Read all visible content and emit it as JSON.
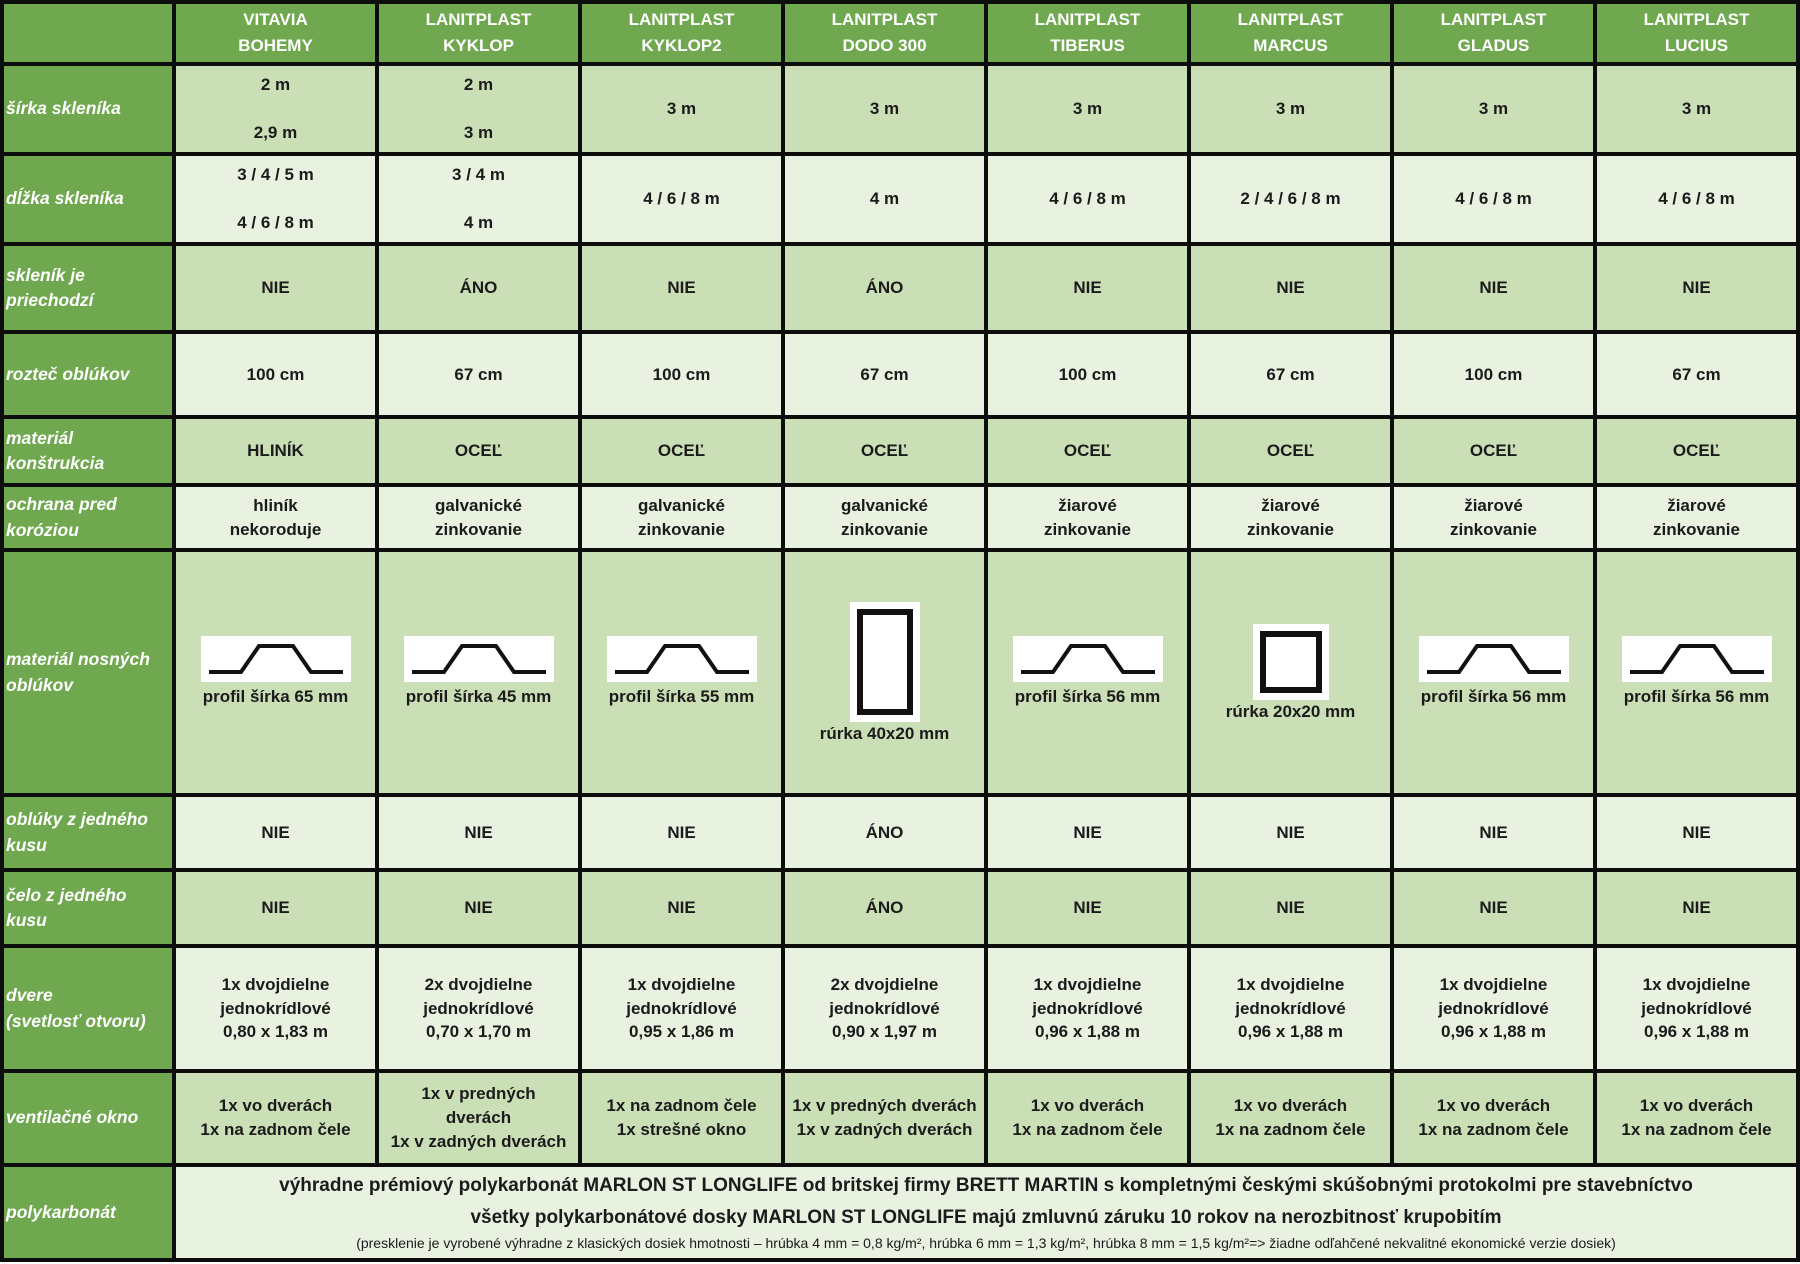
{
  "colors": {
    "header_green": "#6fa84e",
    "cell_dark": "#cbdfb6",
    "cell_light": "#e9f1e1",
    "border_black": "#0d0d0d",
    "text_dark": "#1b1b1b",
    "text_white": "#ffffff"
  },
  "products": [
    "VITAVIA\nBOHEMY",
    "LANITPLAST\nKYKLOP",
    "LANITPLAST\nKYKLOP2",
    "LANITPLAST\nDODO 300",
    "LANITPLAST\nTIBERUS",
    "LANITPLAST\nMARCUS",
    "LANITPLAST\nGLADUS",
    "LANITPLAST\nLUCIUS"
  ],
  "rows": [
    {
      "label": "šírka skleníka",
      "type": "text",
      "values": [
        "2 m\n\n2,9 m",
        "2 m\n\n3 m",
        "3 m",
        "3 m",
        "3 m",
        "3 m",
        "3 m",
        "3 m"
      ]
    },
    {
      "label": "dĺžka skleníka",
      "type": "text",
      "values": [
        "3 / 4 / 5 m\n\n4 / 6 / 8 m",
        "3 / 4 m\n\n4 m",
        "4 / 6 / 8 m",
        "4 m",
        "4 / 6 / 8 m",
        "2 / 4 / 6 / 8 m",
        "4 / 6 / 8 m",
        "4 / 6 / 8 m"
      ]
    },
    {
      "label": "skleník je priechodzí",
      "type": "text",
      "values": [
        "NIE",
        "ÁNO",
        "NIE",
        "ÁNO",
        "NIE",
        "NIE",
        "NIE",
        "NIE"
      ]
    },
    {
      "label": "rozteč oblúkov",
      "type": "text",
      "values": [
        "100 cm",
        "67 cm",
        "100 cm",
        "67 cm",
        "100 cm",
        "67 cm",
        "100 cm",
        "67 cm"
      ]
    },
    {
      "label": "materiál konštrukcia",
      "type": "text",
      "values": [
        "HLINÍK",
        "OCEĽ",
        "OCEĽ",
        "OCEĽ",
        "OCEĽ",
        "OCEĽ",
        "OCEĽ",
        "OCEĽ"
      ]
    },
    {
      "label": "ochrana pred koróziou",
      "type": "text",
      "values": [
        "hliník\nnekoroduje",
        "galvanické\nzinkovanie",
        "galvanické\nzinkovanie",
        "galvanické\nzinkovanie",
        "žiarové\nzinkovanie",
        "žiarové\nzinkovanie",
        "žiarové\nzinkovanie",
        "žiarové\nzinkovanie"
      ]
    },
    {
      "label": "materiál nosných oblúkov",
      "type": "profile",
      "values": [
        {
          "icon": "trapezoid",
          "label": "profil šírka 65 mm"
        },
        {
          "icon": "trapezoid",
          "label": "profil šírka 45 mm"
        },
        {
          "icon": "trapezoid",
          "label": "profil šírka 55 mm"
        },
        {
          "icon": "rect-tall",
          "label": "rúrka 40x20 mm"
        },
        {
          "icon": "trapezoid",
          "label": "profil šírka 56 mm"
        },
        {
          "icon": "square",
          "label": "rúrka 20x20 mm"
        },
        {
          "icon": "trapezoid",
          "label": "profil šírka 56 mm"
        },
        {
          "icon": "trapezoid",
          "label": "profil šírka 56 mm"
        }
      ]
    },
    {
      "label": "oblúky z jedného kusu",
      "type": "text",
      "values": [
        "NIE",
        "NIE",
        "NIE",
        "ÁNO",
        "NIE",
        "NIE",
        "NIE",
        "NIE"
      ]
    },
    {
      "label": "čelo z jedného kusu",
      "type": "text",
      "values": [
        "NIE",
        "NIE",
        "NIE",
        "ÁNO",
        "NIE",
        "NIE",
        "NIE",
        "NIE"
      ]
    },
    {
      "label": "dvere\n(svetlosť otvoru)",
      "type": "text",
      "values": [
        "1x dvojdielne\njednokrídlové\n0,80 x 1,83 m",
        "2x dvojdielne\njednokrídlové\n0,70 x 1,70 m",
        "1x dvojdielne\njednokrídlové\n0,95 x 1,86 m",
        "2x dvojdielne\njednokrídlové\n0,90 x 1,97 m",
        "1x dvojdielne\njednokrídlové\n0,96 x 1,88 m",
        "1x dvojdielne\njednokrídlové\n0,96 x 1,88 m",
        "1x dvojdielne\njednokrídlové\n0,96 x 1,88 m",
        "1x dvojdielne\njednokrídlové\n0,96 x 1,88 m"
      ]
    },
    {
      "label": "ventilačné okno",
      "type": "text",
      "values": [
        "1x vo dverách\n1x na zadnom čele",
        "1x v predných\ndverách\n1x v zadných dverách",
        "1x na zadnom čele\n1x strešné okno",
        "1x v predných dverách\n1x v zadných dverách",
        "1x vo dverách\n1x na zadnom čele",
        "1x vo dverách\n1x na zadnom čele",
        "1x vo dverách\n1x na zadnom čele",
        "1x vo dverách\n1x na zadnom čele"
      ]
    }
  ],
  "footer": {
    "label": "polykarbonát",
    "lines": [
      "výhradne prémiový polykarbonát MARLON ST LONGLIFE od britskej firmy BRETT MARTIN s kompletnými českými skúšobnými protokolmi pre stavebníctvo",
      "všetky polykarbonátové dosky MARLON ST LONGLIFE majú zmluvnú záruku 10 rokov na nerozbitnosť krupobitím",
      "(presklenie je vyrobené výhradne z klasických dosiek hmotnosti – hrúbka 4 mm = 0,8 kg/m², hrúbka 6 mm = 1,3 kg/m², hrúbka 8 mm = 1,5 kg/m²=> žiadne odľahčené nekvalitné ekonomické verzie dosiek)"
    ]
  }
}
